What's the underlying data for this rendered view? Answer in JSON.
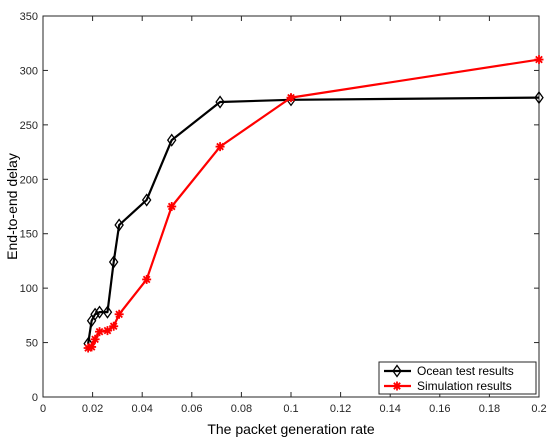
{
  "chart_data": {
    "type": "line",
    "title": "",
    "xlabel": "The packet generation rate",
    "ylabel": "End-to-end delay",
    "xlim": [
      0,
      0.2
    ],
    "ylim": [
      0,
      350
    ],
    "xticks": [
      0,
      0.02,
      0.04,
      0.06,
      0.08,
      0.1,
      0.12,
      0.14,
      0.16,
      0.18,
      0.2
    ],
    "xtick_labels": [
      "0",
      "0.02",
      "0.04",
      "0.06",
      "0.08",
      "0.1",
      "0.12",
      "0.14",
      "0.16",
      "0.18",
      "0.2"
    ],
    "yticks": [
      0,
      50,
      100,
      150,
      200,
      250,
      300,
      350
    ],
    "ytick_labels": [
      "0",
      "50",
      "100",
      "150",
      "200",
      "250",
      "300",
      "350"
    ],
    "grid": false,
    "legend_position": "bottom-right",
    "series": [
      {
        "name": "Ocean test results",
        "color": "#000000",
        "marker": "diamond",
        "x": [
          0.0182,
          0.0196,
          0.021,
          0.0228,
          0.026,
          0.0285,
          0.0307,
          0.0418,
          0.0519,
          0.0714,
          0.1,
          0.2
        ],
        "y": [
          49,
          70,
          76,
          78,
          78,
          124,
          158,
          181,
          236,
          271,
          273,
          275
        ]
      },
      {
        "name": "Simulation results",
        "color": "#ff0000",
        "marker": "star",
        "x": [
          0.0182,
          0.0196,
          0.021,
          0.0228,
          0.026,
          0.0285,
          0.0307,
          0.0418,
          0.0519,
          0.0714,
          0.1,
          0.2
        ],
        "y": [
          45,
          46,
          53,
          60,
          61,
          65,
          76,
          108,
          175,
          230,
          275,
          310
        ]
      }
    ]
  }
}
